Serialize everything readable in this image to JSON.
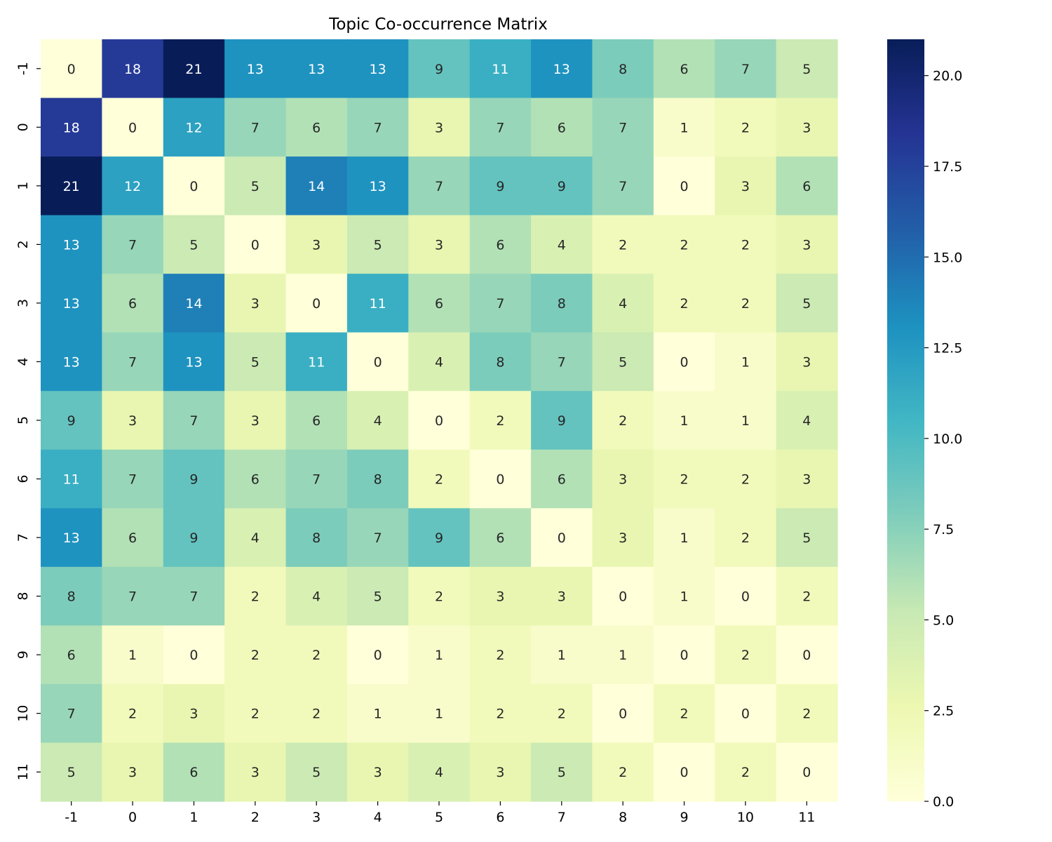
{
  "chart_data": {
    "type": "heatmap",
    "title": "Topic Co-occurrence Matrix",
    "xlabel": "",
    "ylabel": "",
    "x_categories": [
      "-1",
      "0",
      "1",
      "2",
      "3",
      "4",
      "5",
      "6",
      "7",
      "8",
      "9",
      "10",
      "11"
    ],
    "y_categories": [
      "-1",
      "0",
      "1",
      "2",
      "3",
      "4",
      "5",
      "6",
      "7",
      "8",
      "9",
      "10",
      "11"
    ],
    "values": [
      [
        0,
        18,
        21,
        13,
        13,
        13,
        9,
        11,
        13,
        8,
        6,
        7,
        5
      ],
      [
        18,
        0,
        12,
        7,
        6,
        7,
        3,
        7,
        6,
        7,
        1,
        2,
        3
      ],
      [
        21,
        12,
        0,
        5,
        14,
        13,
        7,
        9,
        9,
        7,
        0,
        3,
        6
      ],
      [
        13,
        7,
        5,
        0,
        3,
        5,
        3,
        6,
        4,
        2,
        2,
        2,
        3
      ],
      [
        13,
        6,
        14,
        3,
        0,
        11,
        6,
        7,
        8,
        4,
        2,
        2,
        5
      ],
      [
        13,
        7,
        13,
        5,
        11,
        0,
        4,
        8,
        7,
        5,
        0,
        1,
        3
      ],
      [
        9,
        3,
        7,
        3,
        6,
        4,
        0,
        2,
        9,
        2,
        1,
        1,
        4
      ],
      [
        11,
        7,
        9,
        6,
        7,
        8,
        2,
        0,
        6,
        3,
        2,
        2,
        3
      ],
      [
        13,
        6,
        9,
        4,
        8,
        7,
        9,
        6,
        0,
        3,
        1,
        2,
        5
      ],
      [
        8,
        7,
        7,
        2,
        4,
        5,
        2,
        3,
        3,
        0,
        1,
        0,
        2
      ],
      [
        6,
        1,
        0,
        2,
        2,
        0,
        1,
        2,
        1,
        1,
        0,
        2,
        0
      ],
      [
        7,
        2,
        3,
        2,
        2,
        1,
        1,
        2,
        2,
        0,
        2,
        0,
        2
      ],
      [
        5,
        3,
        6,
        3,
        5,
        3,
        4,
        3,
        5,
        2,
        0,
        2,
        0
      ]
    ],
    "annotated": true,
    "colormap": "YlGnBu",
    "color_range": [
      0,
      21
    ],
    "colorbar": {
      "ticks": [
        0.0,
        2.5,
        5.0,
        7.5,
        10.0,
        12.5,
        15.0,
        17.5,
        20.0
      ],
      "tick_labels": [
        "0.0",
        "2.5",
        "5.0",
        "7.5",
        "10.0",
        "12.5",
        "15.0",
        "17.5",
        "20.0"
      ],
      "placement": "right"
    },
    "grid": false
  }
}
